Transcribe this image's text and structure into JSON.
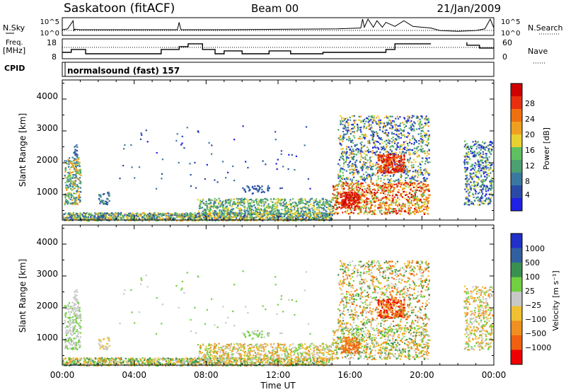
{
  "header": {
    "station": "Saskatoon (fitACF)",
    "beam": "Beam 00",
    "date": "21/Jan/2009"
  },
  "side_labels": {
    "nsky": "N.Sky",
    "freq_line1": "Freq.",
    "freq_line2": "[MHz]",
    "cpid": "CPID",
    "nsearch": "N.Search",
    "nave": "Nave"
  },
  "cpid_text": "normalsound (fast) 157",
  "chart_data": [
    {
      "type": "line",
      "name": "noise-panel",
      "y_tick_labels": [
        "10^5",
        "10^0"
      ],
      "right_tick_labels": [
        "10^5",
        "10^0"
      ],
      "xlim": [
        0,
        24
      ],
      "series": [
        {
          "name": "N.Sky",
          "x": [
            0,
            0.3,
            0.6,
            0.65,
            0.7,
            1,
            3,
            6.4,
            6.5,
            6.6,
            9,
            15.3,
            16.6,
            16.7,
            16.8,
            17,
            17.3,
            17.5,
            17.8,
            18,
            18.5,
            19,
            19.5,
            20,
            20.5,
            21,
            22,
            23,
            23.5,
            23.8,
            24
          ],
          "values": [
            0.35,
            0.4,
            0.9,
            0.3,
            0.38,
            0.35,
            0.35,
            0.35,
            0.8,
            0.35,
            0.35,
            0.4,
            0.45,
            1.0,
            0.5,
            1.0,
            0.5,
            0.9,
            0.5,
            0.8,
            0.55,
            0.9,
            0.55,
            0.5,
            0.45,
            0.3,
            0.25,
            0.3,
            0.4,
            1.0,
            0.45
          ]
        }
      ]
    },
    {
      "type": "line",
      "name": "frequency-panel",
      "ylabel": "Freq. [MHz]",
      "y_tick_labels": [
        "18",
        "8"
      ],
      "right_tick_labels": [
        "60",
        "0"
      ],
      "xlim": [
        0,
        24
      ],
      "series": [
        {
          "name": "Freq.",
          "x": [
            0,
            0.5,
            0.5,
            1.3,
            1.3,
            5.5,
            5.5,
            6.5,
            6.5,
            7.0,
            7.0,
            7.8,
            7.8,
            8.5,
            8.5,
            9.0,
            9.0,
            10.0,
            10.0,
            11.5,
            11.5,
            12.7,
            12.7,
            14.5,
            14.5,
            16.5,
            16.5,
            18.0,
            18.0,
            18.5,
            18.5,
            20.5,
            20.5
          ],
          "values": [
            11,
            11,
            13,
            13,
            10,
            10,
            13,
            13,
            15,
            15,
            17,
            17,
            13,
            13,
            10,
            10,
            12,
            12,
            10,
            10,
            12,
            12,
            10,
            10,
            11,
            11,
            11,
            11,
            13,
            13,
            17,
            17,
            17
          ]
        },
        {
          "name": "Freq. (late)",
          "x": [
            22.5,
            22.5,
            23.2,
            23.2,
            24
          ],
          "values": [
            18,
            16,
            16,
            14,
            14
          ]
        }
      ]
    },
    {
      "type": "heatmap",
      "name": "power-panel",
      "ylabel": "Slant Range [km]",
      "y_tick_labels": [
        "1000",
        "2000",
        "3000",
        "4000"
      ],
      "ylim": [
        200,
        4600
      ],
      "xlim": [
        0,
        24
      ],
      "colorbar": {
        "label": "Power [dB]",
        "ticks": [
          "28",
          "24",
          "20",
          "16",
          "12",
          "8",
          "4"
        ],
        "colors": [
          "#2020e6",
          "#2a4aa8",
          "#3a78a0",
          "#4aa070",
          "#5ec060",
          "#e8d030",
          "#f0a020",
          "#f07010",
          "#e83010",
          "#d00000"
        ]
      }
    },
    {
      "type": "heatmap",
      "name": "velocity-panel",
      "ylabel": "Slant Range [km]",
      "y_tick_labels": [
        "1000",
        "2000",
        "3000",
        "4000"
      ],
      "ylim": [
        200,
        4600
      ],
      "xlim": [
        0,
        24
      ],
      "x_tick_labels": [
        "00:00",
        "04:00",
        "08:00",
        "12:00",
        "16:00",
        "20:00",
        "00:00"
      ],
      "xlabel": "Time UT",
      "colorbar": {
        "label": "Velocity [m s⁻¹]",
        "ticks": [
          "1000",
          "500",
          "100",
          "25",
          "−25",
          "−100",
          "−500",
          "−1000"
        ],
        "colors": [
          "#2030c8",
          "#3060a0",
          "#3a9050",
          "#70d040",
          "#c8c8c8",
          "#f0c030",
          "#f09020",
          "#f06010",
          "#f00000"
        ]
      }
    }
  ]
}
